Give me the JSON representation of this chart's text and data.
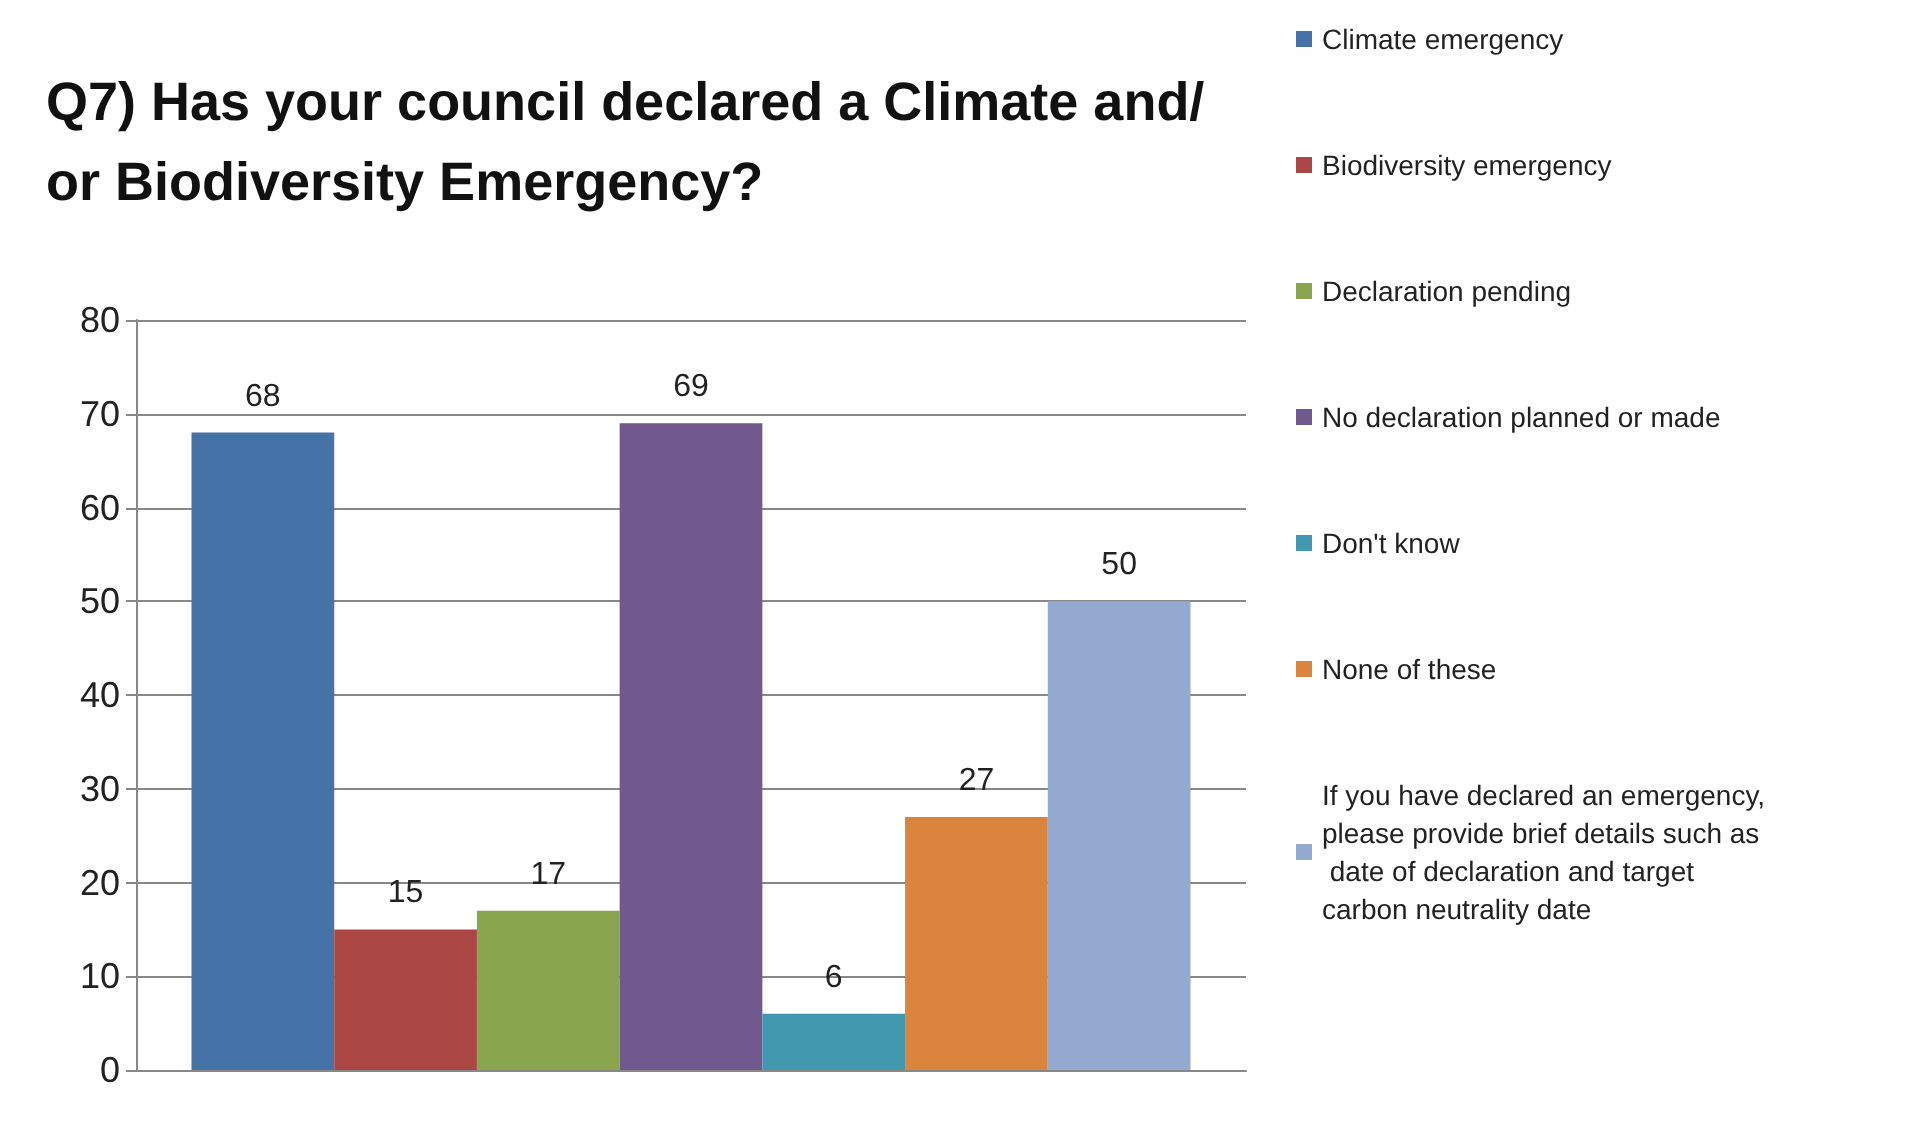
{
  "chart_data": {
    "type": "bar",
    "title": "Q7) Has your council declared a Climate and/or Biodiversity Emergency?",
    "categories": [
      null
    ],
    "series": [
      {
        "name": "Climate emergency",
        "color": "#4572a7",
        "values": [
          68
        ]
      },
      {
        "name": "Biodiversity emergency",
        "color": "#aa4643",
        "values": [
          15
        ]
      },
      {
        "name": "Declaration pending",
        "color": "#89a54e",
        "values": [
          17
        ]
      },
      {
        "name": "No declaration planned or made",
        "color": "#71588f",
        "values": [
          69
        ]
      },
      {
        "name": "Don't know",
        "color": "#4198af",
        "values": [
          6
        ]
      },
      {
        "name": "None of these",
        "color": "#db843d",
        "values": [
          27
        ]
      },
      {
        "name": "If you have declared an emergency, please provide brief details such as date of declaration and target carbon neutrality date",
        "color": "#93a9cf",
        "values": [
          50
        ]
      }
    ],
    "ylim": [
      0,
      80
    ],
    "yticks": [
      0,
      10,
      20,
      30,
      40,
      50,
      60,
      70,
      80
    ],
    "grid": "y",
    "legend": "right",
    "data_labels": true
  }
}
